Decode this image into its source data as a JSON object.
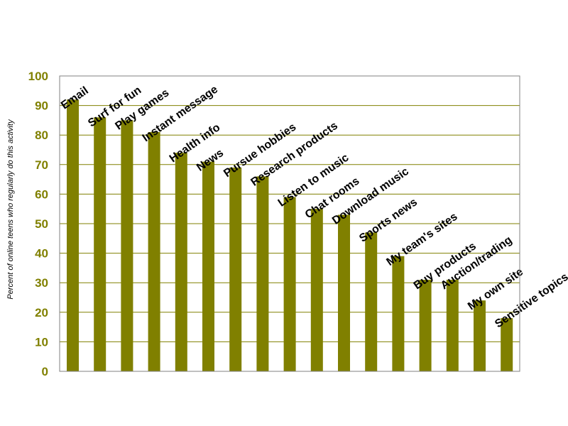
{
  "chart_data": {
    "type": "bar",
    "title": "",
    "xlabel": "",
    "ylabel": "Percent of online teens who regularly do this activity",
    "ylim": [
      0,
      100
    ],
    "yticks": [
      0,
      10,
      20,
      30,
      40,
      50,
      60,
      70,
      80,
      90,
      100
    ],
    "grid": true,
    "categories": [
      "Email",
      "Surf for fun",
      "Play games",
      "Instant message",
      "Health info",
      "News",
      "Pursue hobbies",
      "Research products",
      "Listen to music",
      "Chat rooms",
      "Download music",
      "Sports news",
      "My team's sites",
      "Buy products",
      "Auction/trading",
      "My own site",
      "Sensitive topics"
    ],
    "values": [
      92,
      86,
      85,
      81,
      74,
      71,
      69,
      66,
      59,
      55,
      53,
      47,
      39,
      31,
      31,
      24,
      18
    ],
    "colors": {
      "bar": "#808000",
      "grid": "#808000",
      "tick_text": "#808000",
      "frame": "#808080"
    }
  }
}
